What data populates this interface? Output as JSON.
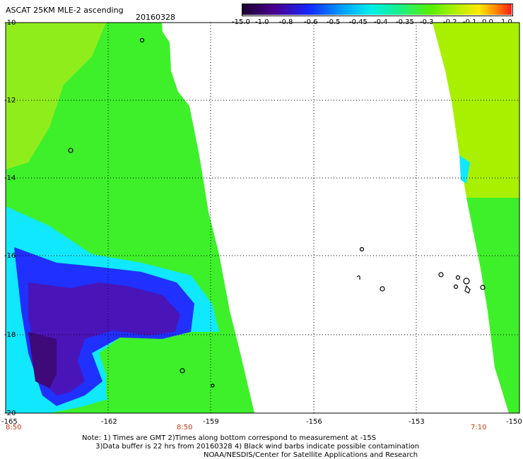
{
  "header": {
    "title": "ASCAT 25KM MLE-2 ascending",
    "date": "20160328"
  },
  "colorbar": {
    "labels": [
      "-15.0",
      "-1.0",
      "-0.8",
      "-0.6",
      "-0.5",
      "-0.45",
      "-0.4",
      "-0.35",
      "-0.3",
      "-0.2",
      "-0.1",
      "0.0",
      "1.0"
    ]
  },
  "axes": {
    "lat_labels": [
      "-10",
      "-12",
      "-14",
      "-16",
      "-18",
      "-20"
    ],
    "lon_labels": [
      "-165",
      "-162",
      "-159",
      "-156",
      "-153",
      "-150"
    ],
    "time_labels": [
      "8:50",
      "8:50",
      "7:10"
    ]
  },
  "footer": {
    "note_line1": "Note: 1) Times are GMT 2)Times along bottom correspond to measurement at -15S",
    "note_line2": "3)Data buffer is 22 hrs from 20160328 4) Black wind barbs indicate possible contamination",
    "credit": "NOAA/NESDIS/Center for Satellite Applications and Research"
  },
  "colors": {
    "deep_purple": "#3e0a7a",
    "blue": "#2030ff",
    "cyan": "#10e8ff",
    "green": "#3ef02a",
    "yellowgreen": "#a8f000",
    "orange": "#ff8a00",
    "red": "#ff2020",
    "time_text": "#c63a13"
  }
}
